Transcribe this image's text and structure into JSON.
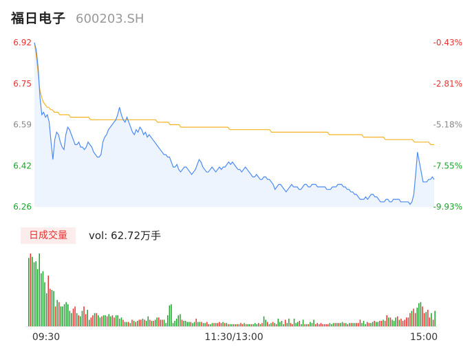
{
  "header": {
    "name": "福日电子",
    "code": "600203.SH"
  },
  "volume_tag": "日成交量",
  "volume_text": "vol: 62.72万手",
  "colors": {
    "up": "#e8312f",
    "down": "#1aa32a",
    "price_line": "#4a8af4",
    "avg_line": "#f5b324",
    "fill": "#eef4fd"
  },
  "chart_data": [
    {
      "type": "line",
      "name": "price",
      "y_left_ticks": [
        "6.92",
        "6.75",
        "6.59",
        "6.42",
        "6.26"
      ],
      "y_right_ticks": [
        "-0.43%",
        "-2.81%",
        "-5.18%",
        "-7.55%",
        "-9.93%"
      ],
      "ylim": [
        6.26,
        6.92
      ],
      "x_ticks": [
        "09:30",
        "11:30/13:00",
        "15:00"
      ],
      "series": [
        {
          "name": "price",
          "values": [
            6.92,
            6.89,
            6.82,
            6.7,
            6.63,
            6.64,
            6.62,
            6.63,
            6.6,
            6.52,
            6.45,
            6.53,
            6.56,
            6.55,
            6.52,
            6.5,
            6.49,
            6.55,
            6.58,
            6.57,
            6.55,
            6.53,
            6.51,
            6.51,
            6.52,
            6.5,
            6.5,
            6.49,
            6.5,
            6.52,
            6.51,
            6.5,
            6.48,
            6.47,
            6.46,
            6.46,
            6.47,
            6.52,
            6.54,
            6.55,
            6.57,
            6.58,
            6.59,
            6.6,
            6.61,
            6.63,
            6.66,
            6.63,
            6.61,
            6.6,
            6.62,
            6.6,
            6.58,
            6.56,
            6.55,
            6.57,
            6.56,
            6.58,
            6.57,
            6.55,
            6.56,
            6.54,
            6.55,
            6.54,
            6.53,
            6.52,
            6.51,
            6.5,
            6.49,
            6.48,
            6.47,
            6.47,
            6.46,
            6.46,
            6.44,
            6.42,
            6.42,
            6.43,
            6.41,
            6.4,
            6.41,
            6.42,
            6.42,
            6.41,
            6.4,
            6.39,
            6.4,
            6.41,
            6.43,
            6.45,
            6.44,
            6.42,
            6.41,
            6.4,
            6.4,
            6.41,
            6.42,
            6.41,
            6.4,
            6.41,
            6.42,
            6.41,
            6.42,
            6.42,
            6.43,
            6.44,
            6.43,
            6.44,
            6.43,
            6.42,
            6.41,
            6.41,
            6.4,
            6.41,
            6.42,
            6.41,
            6.4,
            6.39,
            6.38,
            6.38,
            6.39,
            6.38,
            6.37,
            6.37,
            6.38,
            6.38,
            6.37,
            6.37,
            6.36,
            6.35,
            6.33,
            6.34,
            6.35,
            6.35,
            6.34,
            6.33,
            6.32,
            6.33,
            6.34,
            6.35,
            6.34,
            6.34,
            6.34,
            6.33,
            6.33,
            6.34,
            6.35,
            6.35,
            6.34,
            6.34,
            6.35,
            6.35,
            6.35,
            6.34,
            6.34,
            6.34,
            6.34,
            6.34,
            6.33,
            6.33,
            6.33,
            6.34,
            6.34,
            6.34,
            6.35,
            6.35,
            6.35,
            6.34,
            6.34,
            6.33,
            6.33,
            6.32,
            6.32,
            6.31,
            6.31,
            6.3,
            6.29,
            6.29,
            6.29,
            6.3,
            6.29,
            6.3,
            6.31,
            6.31,
            6.3,
            6.3,
            6.29,
            6.28,
            6.28,
            6.28,
            6.29,
            6.29,
            6.28,
            6.28,
            6.29,
            6.29,
            6.29,
            6.29,
            6.28,
            6.28,
            6.28,
            6.28,
            6.28,
            6.27,
            6.28,
            6.31,
            6.39,
            6.48,
            6.44,
            6.4,
            6.36,
            6.36,
            6.36,
            6.37,
            6.37,
            6.38,
            6.37
          ]
        },
        {
          "name": "avg",
          "values": [
            6.92,
            6.87,
            6.8,
            6.73,
            6.7,
            6.68,
            6.67,
            6.66,
            6.66,
            6.65,
            6.65,
            6.64,
            6.64,
            6.64,
            6.63,
            6.63,
            6.63,
            6.63,
            6.63,
            6.63,
            6.62,
            6.62,
            6.62,
            6.62,
            6.62,
            6.62,
            6.62,
            6.62,
            6.62,
            6.62,
            6.62,
            6.61,
            6.61,
            6.61,
            6.61,
            6.61,
            6.61,
            6.61,
            6.61,
            6.61,
            6.61,
            6.61,
            6.61,
            6.61,
            6.61,
            6.61,
            6.61,
            6.61,
            6.61,
            6.61,
            6.61,
            6.61,
            6.61,
            6.61,
            6.61,
            6.61,
            6.61,
            6.61,
            6.61,
            6.61,
            6.61,
            6.61,
            6.61,
            6.61,
            6.61,
            6.61,
            6.61,
            6.61,
            6.6,
            6.6,
            6.6,
            6.6,
            6.6,
            6.6,
            6.6,
            6.59,
            6.59,
            6.59,
            6.59,
            6.59,
            6.59,
            6.58,
            6.58,
            6.58,
            6.58,
            6.58,
            6.58,
            6.58,
            6.58,
            6.58,
            6.58,
            6.58,
            6.58,
            6.58,
            6.58,
            6.58,
            6.58,
            6.58,
            6.58,
            6.58,
            6.58,
            6.58,
            6.58,
            6.58,
            6.58,
            6.58,
            6.58,
            6.58,
            6.57,
            6.57,
            6.57,
            6.57,
            6.57,
            6.57,
            6.57,
            6.57,
            6.57,
            6.57,
            6.57,
            6.57,
            6.57,
            6.57,
            6.57,
            6.57,
            6.57,
            6.57,
            6.57,
            6.57,
            6.57,
            6.57,
            6.57,
            6.56,
            6.56,
            6.56,
            6.56,
            6.56,
            6.56,
            6.56,
            6.56,
            6.56,
            6.56,
            6.56,
            6.56,
            6.56,
            6.56,
            6.56,
            6.56,
            6.56,
            6.56,
            6.56,
            6.56,
            6.56,
            6.56,
            6.56,
            6.56,
            6.56,
            6.56,
            6.56,
            6.56,
            6.56,
            6.56,
            6.56,
            6.56,
            6.55,
            6.55,
            6.55,
            6.55,
            6.55,
            6.55,
            6.55,
            6.55,
            6.55,
            6.55,
            6.55,
            6.55,
            6.55,
            6.55,
            6.55,
            6.55,
            6.55,
            6.55,
            6.55,
            6.54,
            6.54,
            6.54,
            6.54,
            6.54,
            6.54,
            6.54,
            6.54,
            6.54,
            6.54,
            6.54,
            6.54,
            6.53,
            6.53,
            6.53,
            6.53,
            6.53,
            6.53,
            6.53,
            6.53,
            6.53,
            6.53,
            6.53,
            6.53,
            6.53,
            6.53,
            6.53,
            6.53,
            6.52,
            6.52,
            6.52,
            6.52,
            6.52,
            6.52,
            6.52,
            6.52,
            6.52,
            6.51,
            6.51,
            6.51
          ]
        }
      ]
    },
    {
      "type": "bar",
      "name": "volume",
      "values": [
        62,
        66,
        63,
        58,
        59,
        52,
        66,
        48,
        50,
        40,
        30,
        46,
        34,
        33,
        32,
        18,
        24,
        22,
        18,
        18,
        20,
        22,
        20,
        14,
        12,
        16,
        18,
        12,
        10,
        9,
        14,
        18,
        11,
        15,
        6,
        8,
        10,
        12,
        12,
        10,
        8,
        9,
        10,
        10,
        9,
        11,
        9,
        10,
        8,
        10,
        10,
        7,
        8,
        6,
        4,
        4,
        4,
        3,
        6,
        5,
        4,
        5,
        6,
        6,
        7,
        6,
        5,
        9,
        6,
        5,
        5,
        6,
        8,
        8,
        6,
        6,
        6,
        3,
        10,
        19,
        20,
        3,
        5,
        7,
        10,
        11,
        6,
        5,
        5,
        4,
        4,
        4,
        3,
        4,
        7,
        4,
        4,
        4,
        3,
        3,
        4,
        2,
        2,
        3,
        3,
        3,
        3,
        4,
        3,
        4,
        3,
        3,
        2,
        2,
        2,
        2,
        2,
        2,
        2,
        3,
        2,
        3,
        2,
        2,
        2,
        2,
        2,
        3,
        2,
        3,
        2,
        3,
        9,
        6,
        4,
        2,
        3,
        4,
        3,
        2,
        7,
        4,
        5,
        2,
        6,
        3,
        7,
        3,
        2,
        7,
        3,
        4,
        5,
        2,
        6,
        2,
        2,
        2,
        4,
        3,
        6,
        2,
        3,
        2,
        3,
        2,
        2,
        2,
        2,
        3,
        2,
        3,
        3,
        3,
        3,
        3,
        4,
        3,
        3,
        2,
        3,
        3,
        3,
        3,
        3,
        3,
        6,
        3,
        5,
        2,
        4,
        3,
        3,
        4,
        5,
        4,
        4,
        5,
        5,
        6,
        5,
        10,
        8,
        8,
        6,
        5,
        8,
        9,
        6,
        7,
        5,
        6,
        8,
        8,
        12,
        14,
        16,
        12,
        17,
        21,
        22,
        18,
        12,
        13,
        15,
        8,
        12,
        6,
        14
      ],
      "up_flags": [
        0,
        1,
        0,
        0,
        0,
        0,
        0,
        0,
        0,
        0,
        0,
        1,
        1,
        0,
        0,
        1,
        0,
        1,
        0,
        0,
        0,
        0,
        0,
        0,
        0,
        1,
        1,
        0,
        1,
        0,
        0,
        1,
        1,
        0,
        0,
        1,
        1,
        0,
        1,
        0,
        0,
        1,
        0,
        0,
        1,
        0,
        0,
        1,
        1,
        0,
        0,
        0,
        0,
        1,
        0,
        0,
        1,
        0,
        1,
        0,
        1,
        0,
        1,
        1,
        0,
        1,
        0,
        0,
        1,
        0,
        1,
        0,
        0,
        1,
        1,
        1,
        0,
        0,
        0,
        0,
        0,
        0,
        0,
        0,
        0,
        0,
        1,
        0,
        0,
        0,
        0,
        1,
        0,
        0,
        1,
        0,
        0,
        1,
        0,
        0,
        1,
        1,
        0,
        0,
        1,
        0,
        1,
        1,
        1,
        0,
        1,
        0,
        1,
        0,
        0,
        1,
        0,
        1,
        0,
        1,
        1,
        0,
        1,
        0,
        0,
        1,
        0,
        0,
        0,
        1,
        0,
        1,
        0,
        0,
        1,
        0,
        0,
        1,
        0,
        1,
        0,
        0,
        0,
        0,
        1,
        0,
        0,
        1,
        1,
        0,
        0,
        0,
        1,
        0,
        0,
        1,
        0,
        1,
        0,
        0,
        0,
        1,
        1,
        1,
        1,
        1,
        1,
        1,
        1,
        0,
        0,
        0,
        1,
        0,
        1,
        0,
        0,
        1,
        0,
        1,
        0,
        1,
        0,
        0,
        1,
        1,
        1,
        0,
        0,
        0,
        1,
        1,
        0,
        0,
        1,
        0,
        0,
        1,
        1,
        0,
        1,
        1,
        0,
        1,
        0,
        0,
        0,
        1,
        0,
        1,
        1,
        1,
        1,
        1,
        1,
        0,
        1,
        1,
        0,
        0,
        0,
        1,
        1,
        0,
        1,
        1,
        0,
        1,
        0,
        1,
        0,
        1
      ]
    }
  ]
}
